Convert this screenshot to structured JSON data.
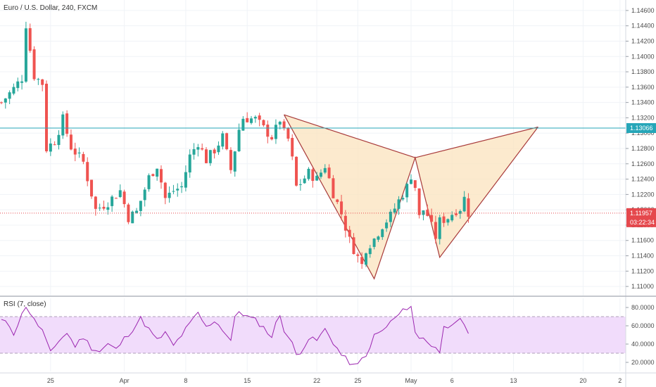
{
  "chart_data": [
    {
      "type": "candlestick",
      "title": "Euro / U.S. Dollar, 240, FXCM",
      "ylim": [
        1.109,
        1.147
      ],
      "y_ticks": [
        {
          "value": 1.146,
          "label": "1.14600"
        },
        {
          "value": 1.144,
          "label": "1.14400"
        },
        {
          "value": 1.142,
          "label": "1.14200"
        },
        {
          "value": 1.14,
          "label": "1.14000"
        },
        {
          "value": 1.138,
          "label": "1.13800"
        },
        {
          "value": 1.136,
          "label": "1.13600"
        },
        {
          "value": 1.134,
          "label": "1.13400"
        },
        {
          "value": 1.132,
          "label": "1.13200"
        },
        {
          "value": 1.13,
          "label": "1.13000"
        },
        {
          "value": 1.128,
          "label": "1.12800"
        },
        {
          "value": 1.126,
          "label": "1.12600"
        },
        {
          "value": 1.124,
          "label": "1.12400"
        },
        {
          "value": 1.122,
          "label": "1.12200"
        },
        {
          "value": 1.12,
          "label": "1.12000"
        },
        {
          "value": 1.118,
          "label": "1.11800"
        },
        {
          "value": 1.116,
          "label": "1.11600"
        },
        {
          "value": 1.114,
          "label": "1.11400"
        },
        {
          "value": 1.112,
          "label": "1.11200"
        },
        {
          "value": 1.11,
          "label": "1.11000"
        }
      ],
      "x_ticks": [
        {
          "bar": 12,
          "label": "25"
        },
        {
          "bar": 30,
          "label": "Apr"
        },
        {
          "bar": 45,
          "label": "8"
        },
        {
          "bar": 60,
          "label": "15"
        },
        {
          "bar": 77,
          "label": "22"
        },
        {
          "bar": 87,
          "label": "25"
        },
        {
          "bar": 100,
          "label": "May"
        },
        {
          "bar": 110,
          "label": "6"
        },
        {
          "bar": 125,
          "label": "13"
        },
        {
          "bar": 142,
          "label": "20"
        },
        {
          "bar": 151,
          "label": "2"
        }
      ],
      "anchors": [
        [
          0,
          1.134
        ],
        [
          3,
          1.1358
        ],
        [
          5,
          1.1372
        ],
        [
          6,
          1.1442
        ],
        [
          8,
          1.1375
        ],
        [
          10,
          1.1365
        ],
        [
          11,
          1.128
        ],
        [
          13,
          1.129
        ],
        [
          15,
          1.1318
        ],
        [
          17,
          1.1282
        ],
        [
          20,
          1.1262
        ],
        [
          23,
          1.12
        ],
        [
          26,
          1.121
        ],
        [
          29,
          1.1225
        ],
        [
          31,
          1.119
        ],
        [
          33,
          1.1197
        ],
        [
          36,
          1.1242
        ],
        [
          38,
          1.1258
        ],
        [
          40,
          1.1215
        ],
        [
          42,
          1.1225
        ],
        [
          44,
          1.123
        ],
        [
          46,
          1.127
        ],
        [
          48,
          1.1288
        ],
        [
          50,
          1.1265
        ],
        [
          52,
          1.1278
        ],
        [
          54,
          1.1295
        ],
        [
          56,
          1.1252
        ],
        [
          58,
          1.1305
        ],
        [
          59,
          1.132
        ],
        [
          62,
          1.1318
        ],
        [
          64,
          1.1306
        ],
        [
          66,
          1.1295
        ],
        [
          67,
          1.1305
        ],
        [
          68,
          1.1318
        ],
        [
          69,
          1.13
        ],
        [
          70,
          1.1292
        ],
        [
          71,
          1.1265
        ],
        [
          72,
          1.123
        ],
        [
          73,
          1.1235
        ],
        [
          75,
          1.1248
        ],
        [
          77,
          1.124
        ],
        [
          79,
          1.1258
        ],
        [
          81,
          1.1222
        ],
        [
          83,
          1.1195
        ],
        [
          85,
          1.116
        ],
        [
          87,
          1.1138
        ],
        [
          88,
          1.1128
        ],
        [
          89,
          1.115
        ],
        [
          91,
          1.1162
        ],
        [
          93,
          1.118
        ],
        [
          95,
          1.1192
        ],
        [
          97,
          1.1212
        ],
        [
          99,
          1.123
        ],
        [
          100,
          1.1245
        ],
        [
          101,
          1.123
        ],
        [
          102,
          1.119
        ],
        [
          103,
          1.12
        ],
        [
          104,
          1.1193
        ],
        [
          105,
          1.1178
        ],
        [
          106,
          1.1165
        ],
        [
          107,
          1.1185
        ],
        [
          109,
          1.119
        ],
        [
          111,
          1.12
        ],
        [
          112,
          1.1202
        ],
        [
          113,
          1.1215
        ],
        [
          114,
          1.1196
        ]
      ],
      "last_bar": 114,
      "horizontal_line": {
        "value": 1.13066,
        "label": "1.13066",
        "color": "#26a6b8"
      },
      "current_price": {
        "value": 1.11957,
        "label": "1.11957",
        "countdown": "03:22:34",
        "color": "#e5484d"
      },
      "pattern": {
        "fill": "#fbe3bd",
        "stroke": "#a83a3a",
        "points": [
          [
            69,
            1.1324
          ],
          [
            91,
            1.111
          ],
          [
            101,
            1.1268
          ],
          [
            107,
            1.1138
          ],
          [
            131,
            1.1308
          ]
        ]
      },
      "colors": {
        "up": "#26a69a",
        "down": "#ef5350"
      }
    },
    {
      "type": "line",
      "title": "RSI (7, close)",
      "ylim": [
        10,
        90
      ],
      "y_ticks": [
        {
          "value": 80,
          "label": "80.0000"
        },
        {
          "value": 60,
          "label": "60.0000"
        },
        {
          "value": 40,
          "label": "40.0000"
        },
        {
          "value": 20,
          "label": "20.0000"
        }
      ],
      "band": [
        30,
        70
      ],
      "band_color": "#f1dcfb",
      "line_color": "#9c27b0",
      "anchors": [
        [
          0,
          66
        ],
        [
          2,
          60
        ],
        [
          3,
          52
        ],
        [
          5,
          72
        ],
        [
          6,
          82
        ],
        [
          8,
          66
        ],
        [
          10,
          55
        ],
        [
          11,
          42
        ],
        [
          12,
          30
        ],
        [
          14,
          44
        ],
        [
          16,
          52
        ],
        [
          18,
          38
        ],
        [
          20,
          48
        ],
        [
          22,
          36
        ],
        [
          24,
          32
        ],
        [
          26,
          40
        ],
        [
          28,
          34
        ],
        [
          30,
          46
        ],
        [
          32,
          56
        ],
        [
          34,
          68
        ],
        [
          36,
          56
        ],
        [
          38,
          44
        ],
        [
          40,
          52
        ],
        [
          42,
          38
        ],
        [
          44,
          50
        ],
        [
          46,
          62
        ],
        [
          48,
          74
        ],
        [
          50,
          58
        ],
        [
          52,
          66
        ],
        [
          54,
          56
        ],
        [
          56,
          44
        ],
        [
          57,
          68
        ],
        [
          58,
          76
        ],
        [
          60,
          70
        ],
        [
          62,
          66
        ],
        [
          64,
          58
        ],
        [
          66,
          48
        ],
        [
          67,
          62
        ],
        [
          68,
          72
        ],
        [
          69,
          56
        ],
        [
          71,
          40
        ],
        [
          72,
          28
        ],
        [
          73,
          32
        ],
        [
          75,
          46
        ],
        [
          77,
          44
        ],
        [
          79,
          56
        ],
        [
          81,
          42
        ],
        [
          83,
          28
        ],
        [
          85,
          20
        ],
        [
          86,
          16
        ],
        [
          87,
          17
        ],
        [
          88,
          24
        ],
        [
          90,
          34
        ],
        [
          91,
          50
        ],
        [
          93,
          54
        ],
        [
          95,
          64
        ],
        [
          97,
          72
        ],
        [
          99,
          80
        ],
        [
          100,
          82
        ],
        [
          101,
          52
        ],
        [
          102,
          46
        ],
        [
          103,
          48
        ],
        [
          105,
          38
        ],
        [
          107,
          32
        ],
        [
          108,
          62
        ],
        [
          110,
          58
        ],
        [
          112,
          66
        ],
        [
          114,
          52
        ]
      ]
    }
  ]
}
